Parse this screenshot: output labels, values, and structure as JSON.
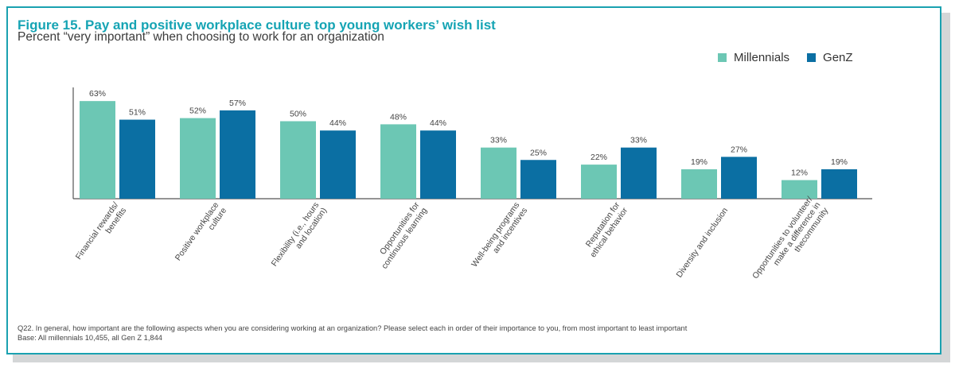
{
  "figure": {
    "title": "Figure 15. Pay and positive workplace culture top young workers’ wish list",
    "subtitle": "Percent  “very important” when choosing to work for an organization",
    "footnote_q": "Q22. In general, how important are the following aspects when you are considering working at an organization? Please select each in order of their importance to you, from most important to least important",
    "footnote_base": "Base: All millennials 10,455, all Gen Z 1,844"
  },
  "legend": [
    {
      "label": "Millennials",
      "color": "#6cc7b4"
    },
    {
      "label": "GenZ",
      "color": "#0b6fa3"
    }
  ],
  "chart_data": {
    "type": "bar",
    "categories": [
      [
        "Financial rewards/",
        "benefits"
      ],
      [
        "Positive workplace",
        "culture"
      ],
      [
        "Flexibility (i.e., hours",
        "and location)"
      ],
      [
        "Opportunities for",
        "continuous learning"
      ],
      [
        "Well-being programs",
        "and incentives"
      ],
      [
        "Reputation for",
        "ethical behavior"
      ],
      [
        "Diversity and inclusion"
      ],
      [
        "Opportunities to volunteer/",
        "make a difference in",
        "thecommunity"
      ]
    ],
    "series": [
      {
        "name": "Millennials",
        "color": "#6cc7b4",
        "values": [
          63,
          52,
          50,
          48,
          33,
          22,
          19,
          12
        ],
        "labels": [
          "63%",
          "52%",
          "50%",
          "48%",
          "33%",
          "22%",
          "19%",
          "12%"
        ]
      },
      {
        "name": "GenZ",
        "color": "#0b6fa3",
        "values": [
          51,
          57,
          44,
          44,
          25,
          33,
          27,
          19
        ],
        "labels": [
          "51%",
          "57%",
          "44%",
          "44%",
          "25%",
          "33%",
          "27%",
          "19%"
        ]
      }
    ],
    "ylim": [
      0,
      80
    ],
    "y_axis": "hidden",
    "grid": false,
    "legend_position": "top-right"
  }
}
